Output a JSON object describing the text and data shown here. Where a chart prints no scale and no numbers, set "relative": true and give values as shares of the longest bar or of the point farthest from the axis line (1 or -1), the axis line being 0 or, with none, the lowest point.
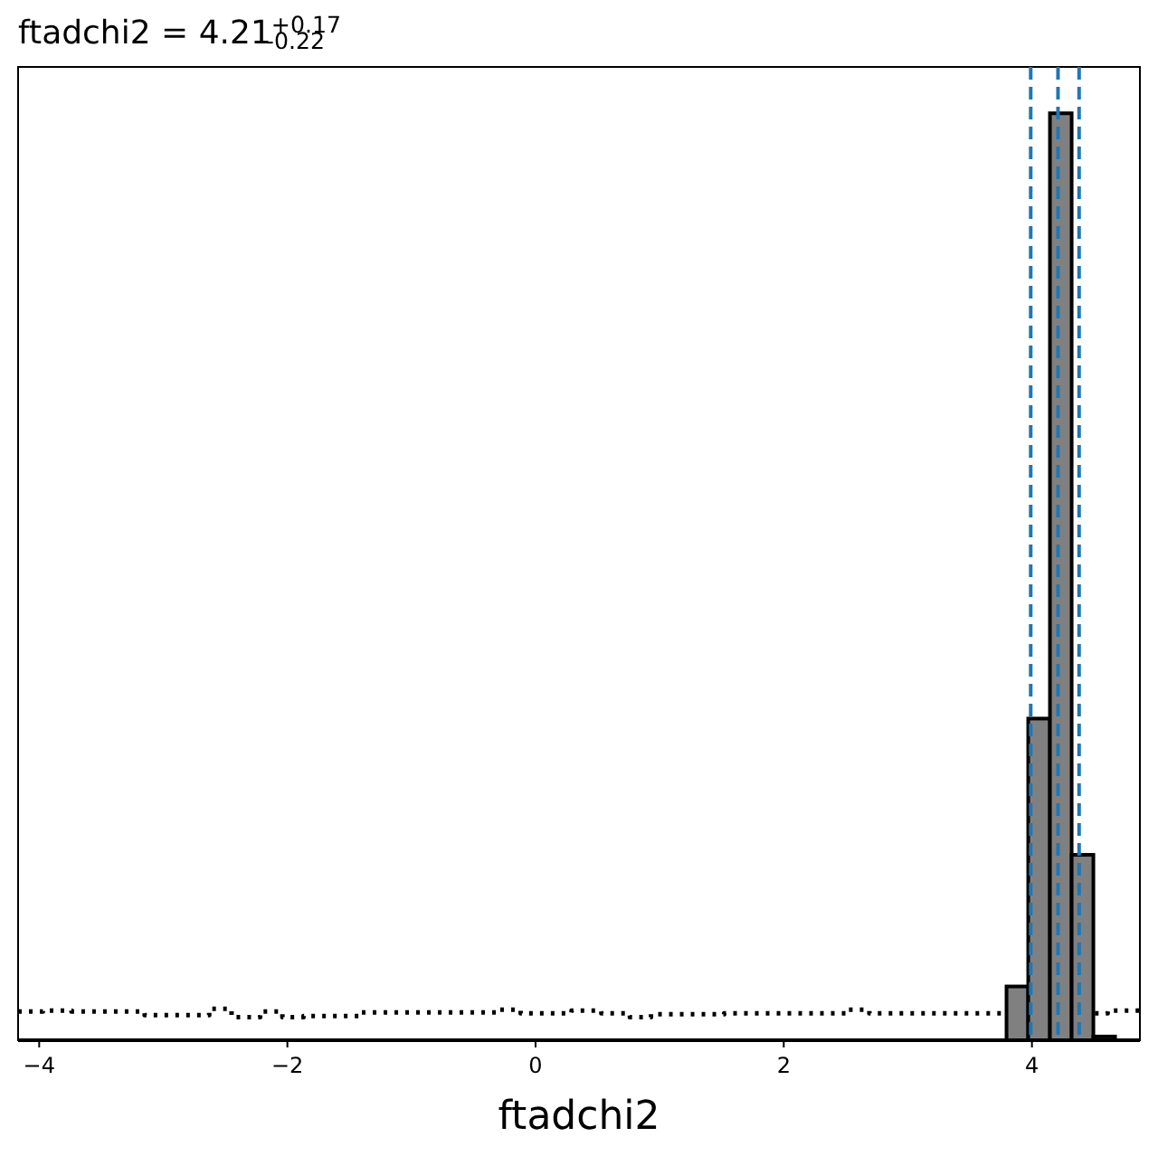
{
  "chart_data": {
    "type": "histogram",
    "title": "ftadchi2 = 4.21$^{+0.17}$$_{-0.22}$",
    "xlabel": "ftadchi2",
    "relative": true,
    "bins": [
      3.795,
      3.97,
      4.145,
      4.32,
      4.495,
      4.67
    ],
    "values": [
      0.058,
      0.347,
      1,
      0.2,
      0.004
    ],
    "color": "#808080",
    "series": [
      {
        "type": "step",
        "line_style": "dotted",
        "color": "#000000",
        "x": [
          -4.17,
          -3.97,
          -3.74,
          -3.15,
          -2.63,
          -2.45,
          -2.22,
          -2.04,
          -1.87,
          -1.4,
          -0.29,
          -0.12,
          0.29,
          0.53,
          0.76,
          0.93,
          1.52,
          2.51,
          2.69,
          4.61,
          4.87
        ],
        "values": [
          0.031,
          0.032,
          0.031,
          0.027,
          0.034,
          0.025,
          0.031,
          0.025,
          0.026,
          0.03,
          0.033,
          0.029,
          0.032,
          0.029,
          0.025,
          0.028,
          0.029,
          0.033,
          0.029,
          0.032,
          0.032
        ]
      }
    ],
    "ref_lines": [
      {
        "axis": "x",
        "value": 3.99,
        "color": "#1f77b4",
        "line_style": "dashed"
      },
      {
        "axis": "x",
        "value": 4.21,
        "color": "#1f77b4",
        "line_style": "dashed"
      },
      {
        "axis": "x",
        "value": 4.38,
        "color": "#1f77b4",
        "line_style": "dashed"
      }
    ],
    "xlim": [
      -4.17,
      4.87
    ],
    "xticks": [
      {
        "value": -4,
        "label": "−4"
      },
      {
        "value": -2,
        "label": "−2"
      },
      0,
      2,
      4
    ],
    "tick_labels": "x",
    "grid": false
  }
}
